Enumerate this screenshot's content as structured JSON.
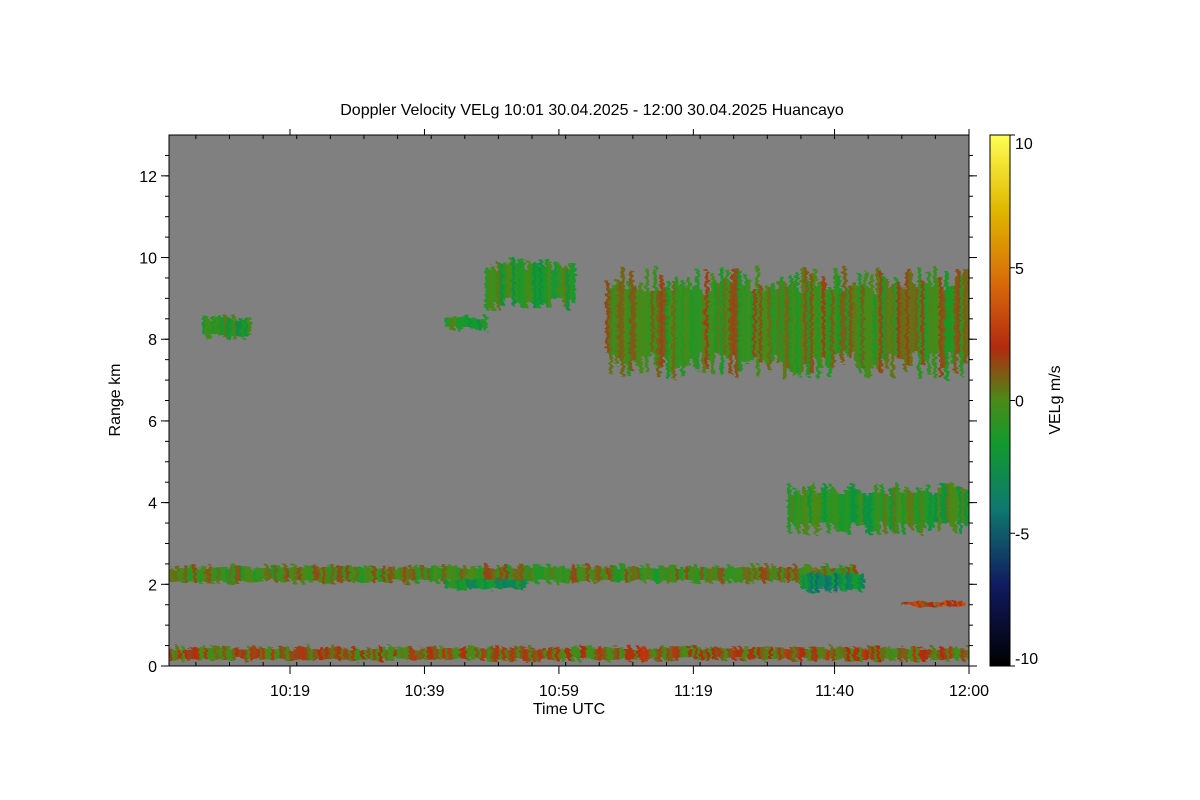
{
  "chart_data": {
    "type": "heatmap",
    "title": "Doppler Velocity VELg   10:01 30.04.2025 - 12:00 30.04.2025 Huancayo",
    "xlabel": "Time UTC",
    "ylabel": "Range km",
    "x_ticks": [
      "10:19",
      "10:39",
      "10:59",
      "11:19",
      "11:40",
      "12:00"
    ],
    "x_tick_minutes": [
      19,
      39,
      59,
      79,
      100,
      120
    ],
    "xlim_minutes": [
      1,
      120
    ],
    "y_ticks": [
      "0",
      "2",
      "4",
      "6",
      "8",
      "10",
      "12"
    ],
    "y_tick_values": [
      0,
      2,
      4,
      6,
      8,
      10,
      12
    ],
    "ylim": [
      0,
      13
    ],
    "colorbar": {
      "label": "VELg m/s",
      "ticks": [
        "10",
        "5",
        "0",
        "-5",
        "-10"
      ],
      "tick_values": [
        10,
        5,
        0,
        -5,
        -10
      ],
      "range": [
        -10,
        10
      ]
    },
    "background_color": "#808080",
    "features": [
      {
        "name": "boundary-layer-band",
        "t_start": 1,
        "t_end": 103,
        "range_bottom": 2.0,
        "range_top": 2.5,
        "velocity": 0
      },
      {
        "name": "lower-cloud-patch",
        "t_start": 42,
        "t_end": 54,
        "range_bottom": 1.85,
        "range_top": 2.15,
        "velocity": -2
      },
      {
        "name": "low-cloud-tail",
        "t_start": 95,
        "t_end": 104,
        "range_bottom": 1.8,
        "range_top": 2.3,
        "velocity": -3
      },
      {
        "name": "near-ground-echo",
        "t_start": 1,
        "t_end": 120,
        "range_bottom": 0.1,
        "range_top": 0.5,
        "velocity": 1
      },
      {
        "name": "cloud-8-5km-left",
        "t_start": 6,
        "t_end": 13,
        "range_bottom": 8.0,
        "range_top": 8.6,
        "velocity": -1
      },
      {
        "name": "cloud-8-4km-small",
        "t_start": 42,
        "t_end": 48,
        "range_bottom": 8.2,
        "range_top": 8.6,
        "velocity": -1
      },
      {
        "name": "cloud-9km-mid",
        "t_start": 48,
        "t_end": 61,
        "range_bottom": 8.7,
        "range_top": 10.0,
        "velocity": -1
      },
      {
        "name": "cloud-upper-layer",
        "t_start": 66,
        "t_end": 120,
        "range_bottom": 7.0,
        "range_top": 9.8,
        "velocity": 0
      },
      {
        "name": "cloud-4km-layer",
        "t_start": 93,
        "t_end": 120,
        "range_bottom": 3.2,
        "range_top": 4.5,
        "velocity": -1
      },
      {
        "name": "small-echo-1-5km",
        "t_start": 110,
        "t_end": 119,
        "range_bottom": 1.45,
        "range_top": 1.6,
        "velocity": 2
      }
    ]
  }
}
